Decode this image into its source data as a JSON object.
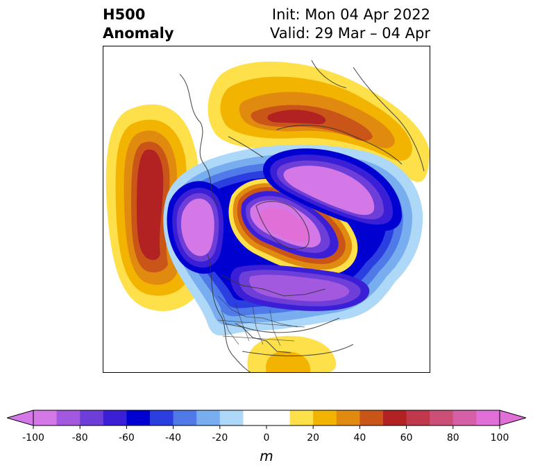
{
  "title": {
    "left_line1": "H500",
    "left_line2": "Anomaly",
    "right_line1": "Init: Mon 04 Apr 2022",
    "right_line2": "Valid: 29 Mar – 04 Apr"
  },
  "map": {
    "projection": "north-polar-stereographic",
    "field": "500 hPa geopotential height anomaly",
    "features": [
      {
        "name": "negative-anomaly-center-greenland",
        "value_m": -100
      },
      {
        "name": "negative-anomaly-center-siberia",
        "value_m": -100
      },
      {
        "name": "negative-anomaly-center-alaska",
        "value_m": -100
      },
      {
        "name": "negative-anomaly-trough-north-atlantic",
        "value_m": -80
      },
      {
        "name": "positive-anomaly-north-pacific",
        "value_m": 60
      },
      {
        "name": "positive-anomaly-central-asia",
        "value_m": 60
      },
      {
        "name": "positive-anomaly-gulf-of-mexico",
        "value_m": 20
      }
    ]
  },
  "colorbar": {
    "unit": "m",
    "min": -100,
    "max": 100,
    "step": 10,
    "extend": "both",
    "ticks": [
      "-100",
      "-80",
      "-60",
      "-40",
      "-20",
      "0",
      "20",
      "40",
      "60",
      "80",
      "100"
    ],
    "colors": [
      "#d478e8",
      "#a259e0",
      "#6e3ed8",
      "#3a1fd6",
      "#0000d0",
      "#2b3fe0",
      "#4f7ae8",
      "#78aef0",
      "#aed8f8",
      "#ffffff",
      "#ffffff",
      "#fde04a",
      "#f2b400",
      "#e08a10",
      "#c95618",
      "#b22222",
      "#c0384c",
      "#cc4f78",
      "#d660a8",
      "#e070d8"
    ],
    "under_color": "#d478e8",
    "over_color": "#e070d8"
  }
}
